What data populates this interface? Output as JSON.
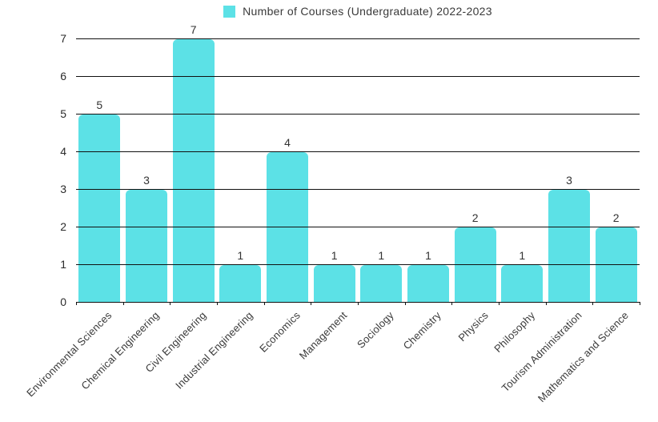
{
  "chart_data": {
    "type": "bar",
    "title": "",
    "legend": {
      "label": "Number of Courses (Undergraduate) 2022-2023",
      "position": "top"
    },
    "categories": [
      "Environmental Sciences",
      "Chemical Engineering",
      "Civil Engineering",
      "Industrial Engineering",
      "Economics",
      "Management",
      "Sociology",
      "Chemistry",
      "Physics",
      "Philosophy",
      "Tourism Administration",
      "Mathematics and Science"
    ],
    "values": [
      5,
      3,
      7,
      1,
      4,
      1,
      1,
      1,
      2,
      1,
      3,
      2
    ],
    "xlabel": "",
    "ylabel": "",
    "ylim": [
      0,
      7
    ],
    "yticks": [
      0,
      1,
      2,
      3,
      4,
      5,
      6,
      7
    ],
    "grid": true,
    "data_labels": true,
    "colors": {
      "bar": "#5CE1E6",
      "gridline": "#111111",
      "text": "#3a3a3a"
    }
  }
}
